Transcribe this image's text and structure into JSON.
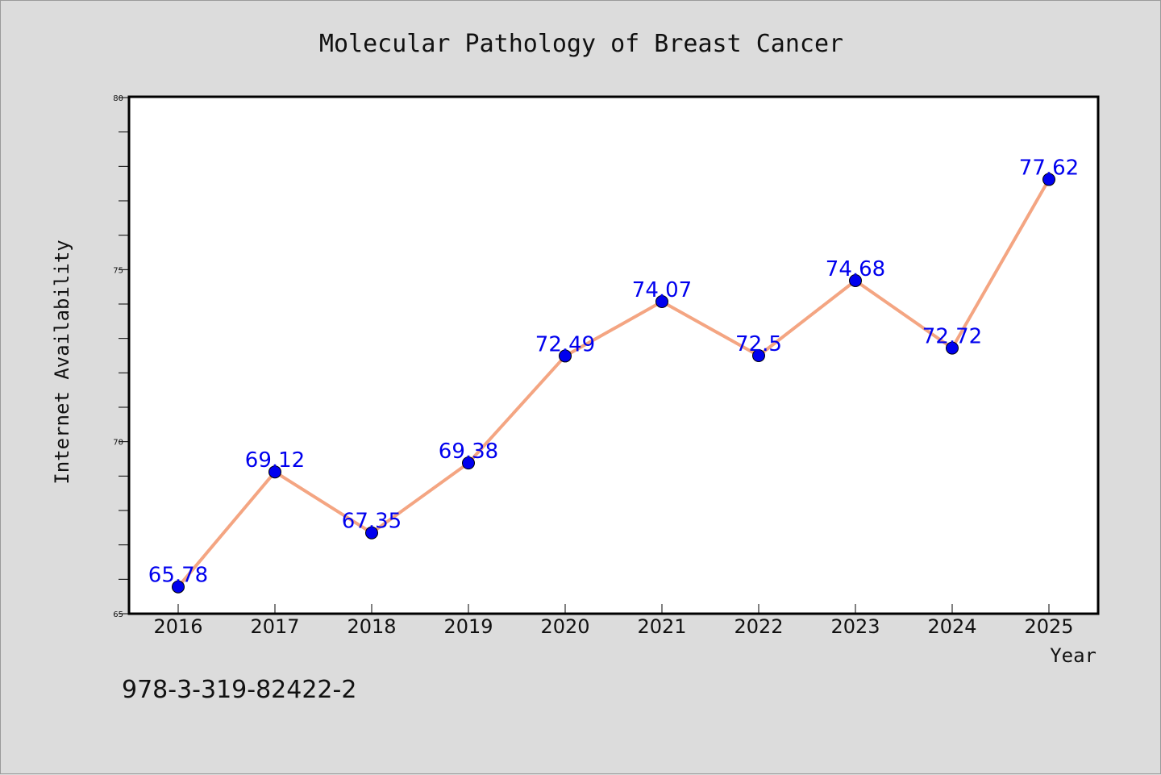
{
  "chart_data": {
    "type": "line",
    "title": "Molecular Pathology of Breast Cancer",
    "xlabel": "Year",
    "ylabel": "Internet Availability",
    "x": [
      "2016",
      "2017",
      "2018",
      "2019",
      "2020",
      "2021",
      "2022",
      "2023",
      "2024",
      "2025"
    ],
    "series": [
      {
        "values": [
          65.78,
          69.12,
          67.35,
          69.38,
          72.49,
          74.07,
          72.5,
          74.68,
          72.72,
          77.62
        ],
        "data_labels": [
          "65.78",
          "69.12",
          "67.35",
          "69.38",
          "72.49",
          "74.07",
          "72.5",
          "74.68",
          "72.72",
          "77.62"
        ]
      }
    ],
    "ylim": [
      65,
      80
    ],
    "yticks": [
      "65",
      "70",
      "75",
      "80"
    ],
    "grid": false,
    "legend": "none",
    "colors": {
      "line": "#f4a582",
      "marker": "#0000ee",
      "data_label": "#0000ee",
      "plot_background": "#ffffff",
      "figure_background": "#dcdcdc"
    }
  },
  "footer": {
    "isbn": "978-3-319-82422-2"
  }
}
